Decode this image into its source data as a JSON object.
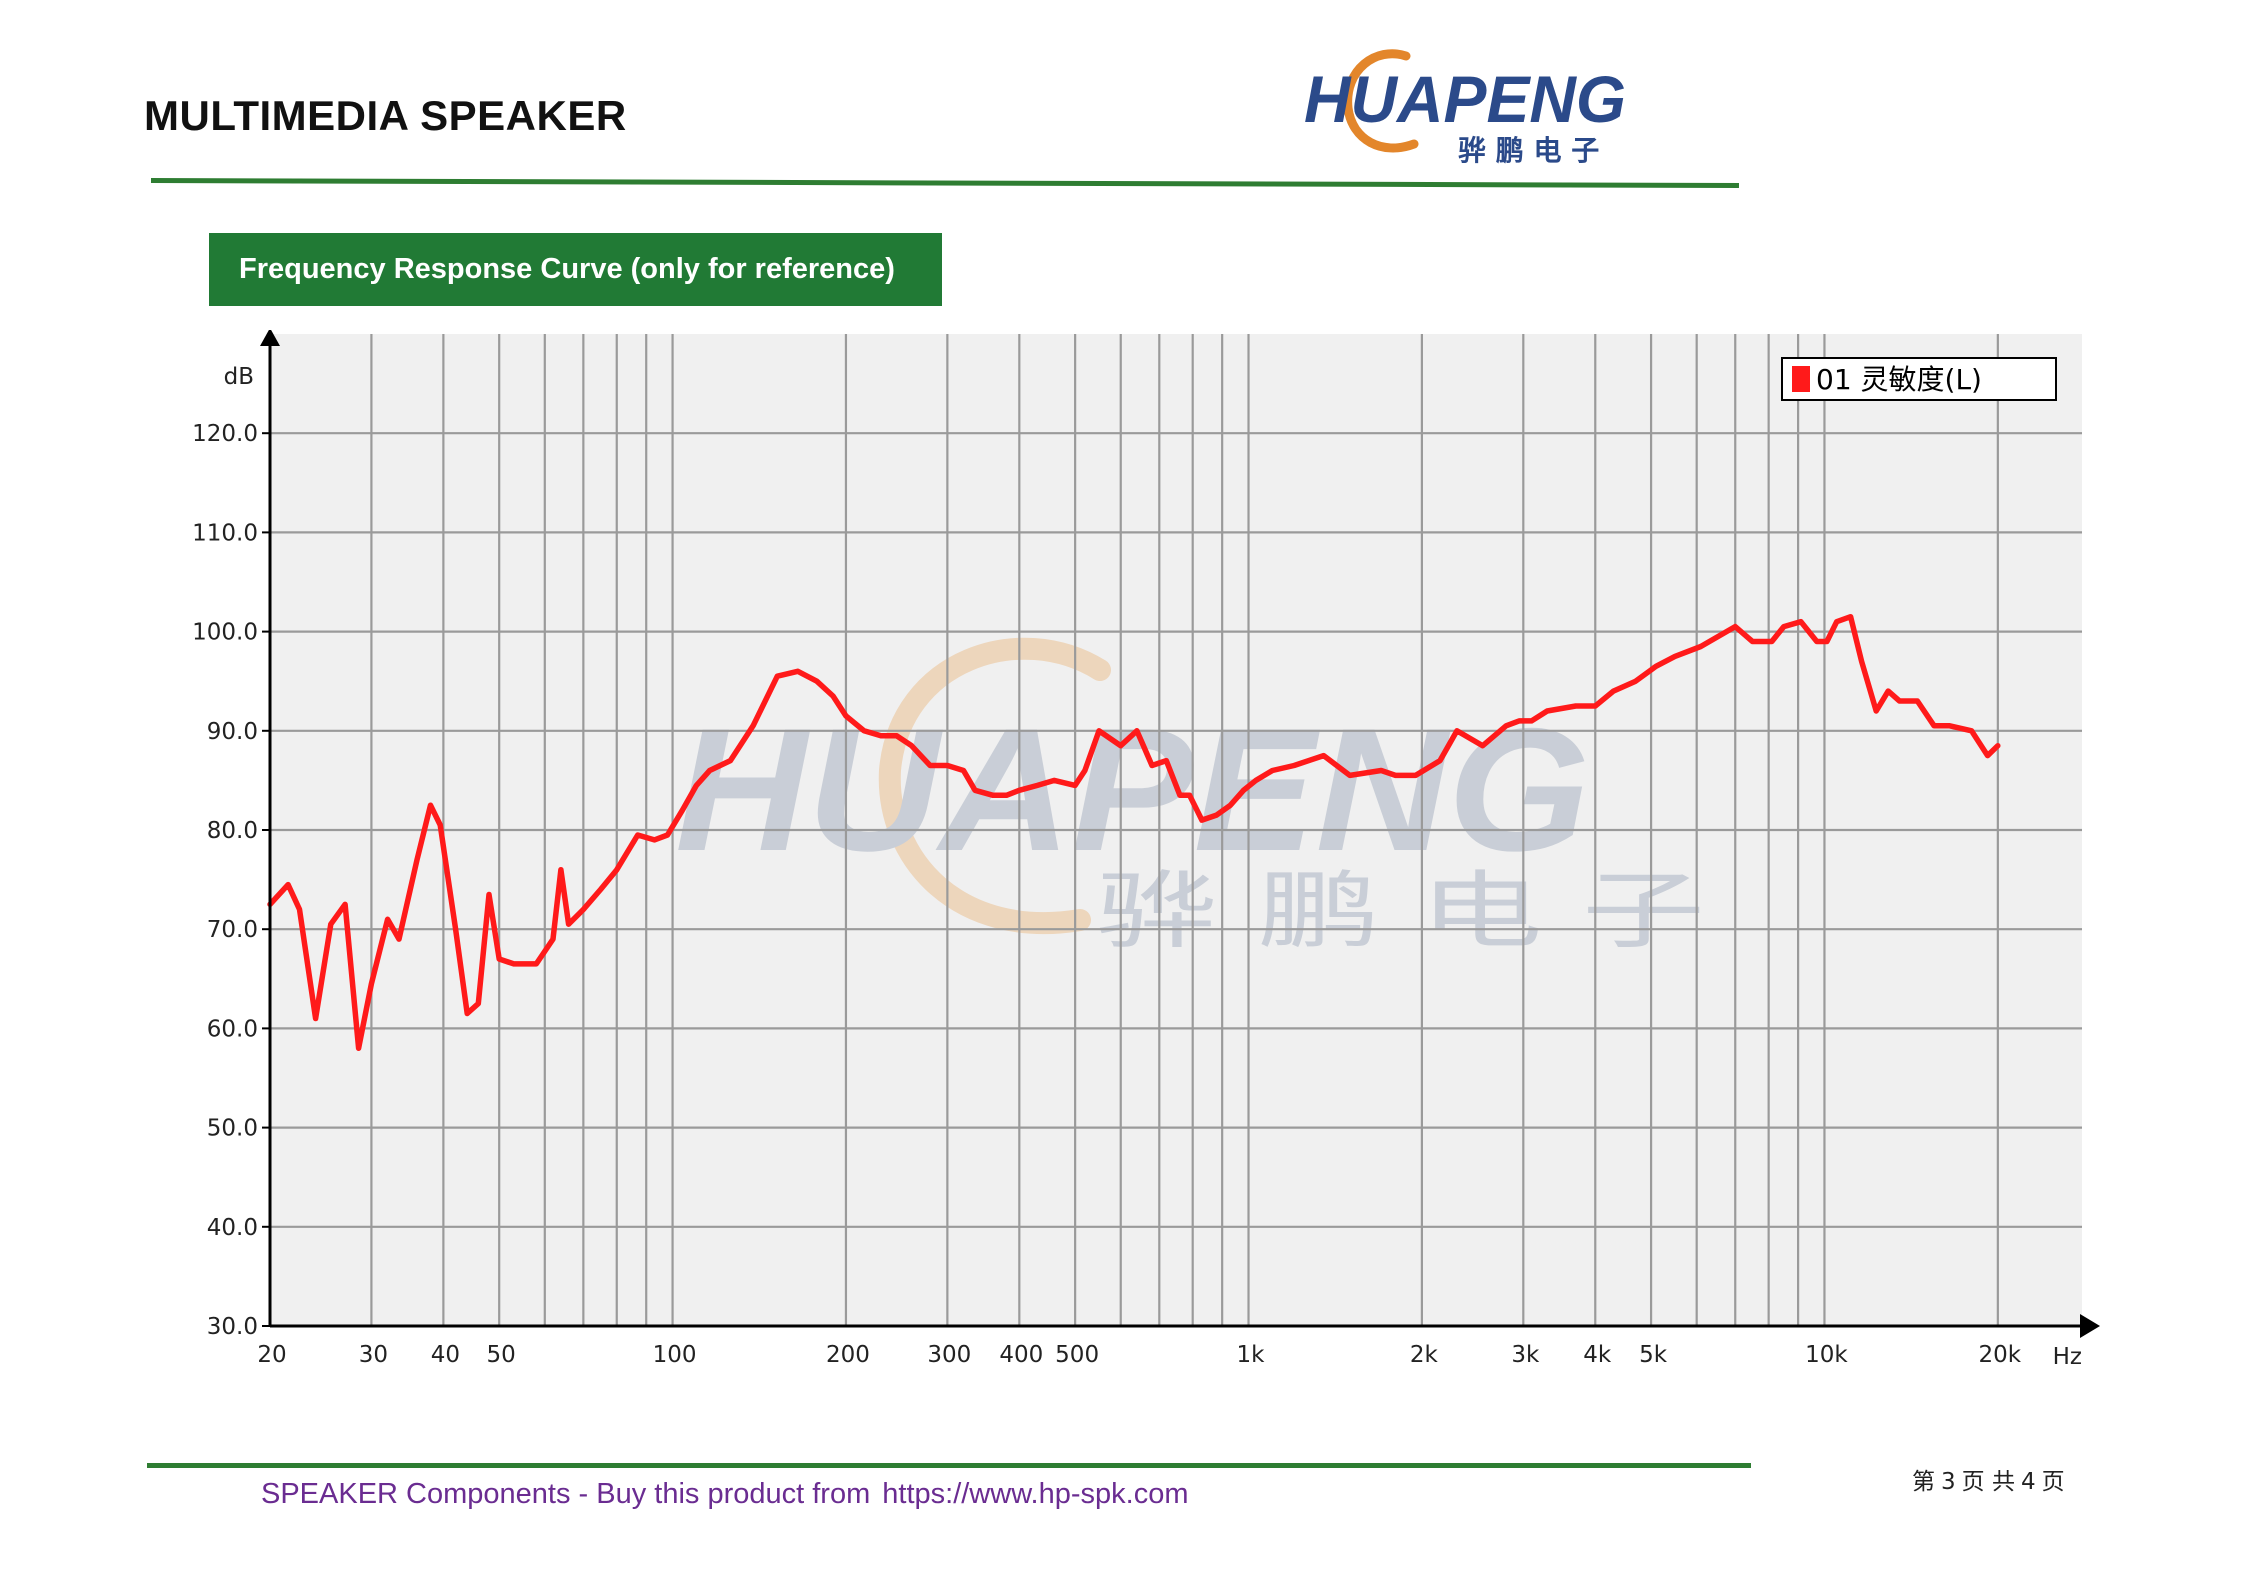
{
  "header": {
    "title": "MULTIMEDIA SPEAKER",
    "logo": {
      "wordmark": "HUAPENG",
      "chinese": "骅 鹏 电 子",
      "colors": {
        "text": "#2b4a8a",
        "swoosh": "#e3862b"
      }
    }
  },
  "section": {
    "heading": "Frequency Response Curve (only for reference)"
  },
  "watermark": {
    "wordmark": "HUAPENG",
    "chinese": "骅 鹏 电 子"
  },
  "chart_data": {
    "type": "line",
    "title": "",
    "xlabel": "Hz",
    "ylabel": "dB",
    "x_scale": "log",
    "xlim": [
      20,
      28000
    ],
    "ylim": [
      30,
      130
    ],
    "grid": true,
    "legend_position": "top-right",
    "y_ticks": [
      "30.0",
      "40.0",
      "50.0",
      "60.0",
      "70.0",
      "80.0",
      "90.0",
      "100.0",
      "110.0",
      "120.0"
    ],
    "x_tick_labels": [
      {
        "value": 20,
        "label": "20"
      },
      {
        "value": 30,
        "label": "30"
      },
      {
        "value": 40,
        "label": "40"
      },
      {
        "value": 50,
        "label": "50"
      },
      {
        "value": 100,
        "label": "100"
      },
      {
        "value": 200,
        "label": "200"
      },
      {
        "value": 300,
        "label": "300"
      },
      {
        "value": 400,
        "label": "400"
      },
      {
        "value": 500,
        "label": "500"
      },
      {
        "value": 1000,
        "label": "1k"
      },
      {
        "value": 2000,
        "label": "2k"
      },
      {
        "value": 3000,
        "label": "3k"
      },
      {
        "value": 4000,
        "label": "4k"
      },
      {
        "value": 5000,
        "label": "5k"
      },
      {
        "value": 10000,
        "label": "10k"
      },
      {
        "value": 20000,
        "label": "20k"
      }
    ],
    "x_gridlines": [
      20,
      30,
      40,
      50,
      60,
      70,
      80,
      90,
      100,
      200,
      300,
      400,
      500,
      600,
      700,
      800,
      900,
      1000,
      2000,
      3000,
      4000,
      5000,
      6000,
      7000,
      8000,
      9000,
      10000,
      20000
    ],
    "colors": {
      "plot_background": "#f0f0f0",
      "grid": "#9a9a9a",
      "axis": "#000000",
      "line": "#ff1a1a"
    },
    "series": [
      {
        "name": "01 灵敏度(L)",
        "color": "#ff1a1a",
        "x": [
          20,
          21.5,
          22.5,
          24,
          25.5,
          27,
          28.5,
          30,
          32,
          33.5,
          36,
          38,
          39.5,
          42,
          44,
          46,
          48,
          50,
          53,
          58,
          62,
          64,
          66,
          70,
          75,
          80,
          87,
          93,
          98,
          104,
          110,
          116,
          126,
          138,
          152,
          165,
          178,
          190,
          200,
          215,
          230,
          245,
          260,
          280,
          300,
          320,
          335,
          360,
          380,
          400,
          430,
          460,
          500,
          520,
          550,
          600,
          640,
          680,
          720,
          760,
          790,
          830,
          880,
          930,
          980,
          1030,
          1100,
          1200,
          1350,
          1500,
          1700,
          1800,
          1950,
          2150,
          2300,
          2550,
          2800,
          2950,
          3100,
          3300,
          3700,
          4000,
          4300,
          4700,
          5100,
          5500,
          6100,
          7000,
          7500,
          8100,
          8500,
          9100,
          9700,
          10100,
          10500,
          11100,
          11600,
          12300,
          12900,
          13500,
          14500,
          15500,
          16500,
          18000,
          19200,
          20000
        ],
        "y": [
          72.5,
          74.5,
          72,
          61,
          70.5,
          72.5,
          58,
          64.5,
          71,
          69,
          77,
          82.5,
          80.5,
          70,
          61.5,
          62.5,
          73.5,
          67,
          66.5,
          66.5,
          69,
          76,
          70.5,
          72,
          74,
          76,
          79.5,
          79,
          79.5,
          82,
          84.5,
          86,
          87,
          90.5,
          95.5,
          96,
          95,
          93.5,
          91.5,
          90,
          89.5,
          89.5,
          88.5,
          86.5,
          86.5,
          86,
          84,
          83.5,
          83.5,
          84,
          84.5,
          85,
          84.5,
          86,
          90,
          88.5,
          90,
          86.5,
          87,
          83.5,
          83.5,
          81,
          81.5,
          82.5,
          84,
          85,
          86,
          86.5,
          87.5,
          85.5,
          86,
          85.5,
          85.5,
          87,
          90,
          88.5,
          90.5,
          91,
          91,
          92,
          92.5,
          92.5,
          94,
          95,
          96.5,
          97.5,
          98.5,
          100.5,
          99,
          99,
          100.5,
          101,
          99,
          99,
          101,
          101.5,
          97,
          92,
          94,
          93,
          93,
          90.5,
          90.5,
          90,
          87.5,
          88.5
        ]
      }
    ]
  },
  "footer": {
    "text": "SPEAKER Components - Buy this product from",
    "url": "https://www.hp-spk.com",
    "page_number": {
      "prefix": "第",
      "current": "3",
      "middle": "页 共",
      "total": "4",
      "suffix": "页"
    }
  }
}
